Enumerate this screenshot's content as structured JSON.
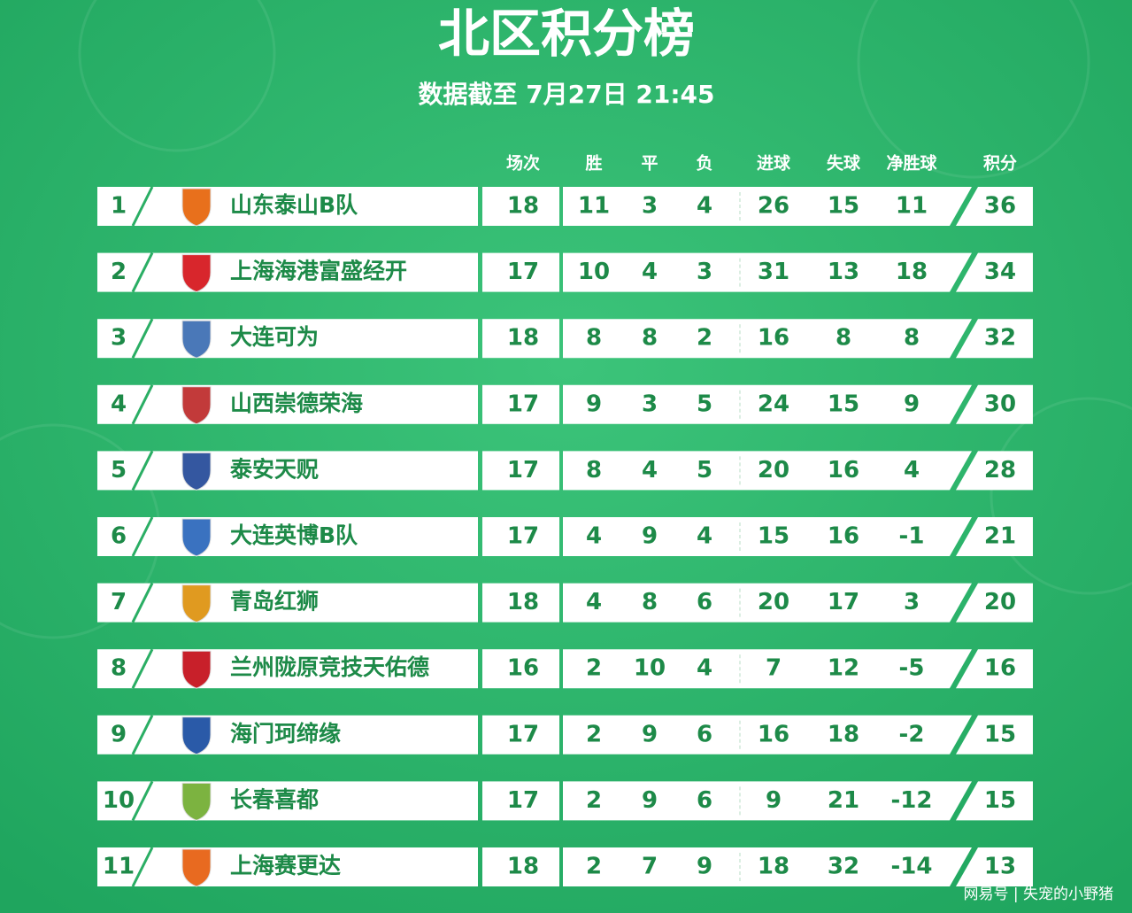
{
  "header": {
    "title": "北区积分榜",
    "subtitle": "数据截至 7月27日 21:45"
  },
  "table": {
    "columns": [
      "场次",
      "胜",
      "平",
      "负",
      "进球",
      "失球",
      "净胜球",
      "积分"
    ],
    "rows": [
      [
        1,
        "山东泰山B队",
        18,
        11,
        3,
        4,
        26,
        15,
        11,
        36
      ],
      [
        2,
        "上海海港富盛经开",
        17,
        10,
        4,
        3,
        31,
        13,
        18,
        34
      ],
      [
        3,
        "大连可为",
        18,
        8,
        8,
        2,
        16,
        8,
        8,
        32
      ],
      [
        4,
        "山西崇德荣海",
        17,
        9,
        3,
        5,
        24,
        15,
        9,
        30
      ],
      [
        5,
        "泰安天贶",
        17,
        8,
        4,
        5,
        20,
        16,
        4,
        28
      ],
      [
        6,
        "大连英博B队",
        17,
        4,
        9,
        4,
        15,
        16,
        -1,
        21
      ],
      [
        7,
        "青岛红狮",
        18,
        4,
        8,
        6,
        20,
        17,
        3,
        20
      ],
      [
        8,
        "兰州陇原竞技天佑德",
        16,
        2,
        10,
        4,
        7,
        12,
        -5,
        16
      ],
      [
        9,
        "海门珂缔缘",
        17,
        2,
        9,
        6,
        16,
        18,
        -2,
        15
      ],
      [
        10,
        "长春喜都",
        17,
        2,
        9,
        6,
        9,
        21,
        -12,
        15
      ],
      [
        11,
        "上海赛更达",
        18,
        2,
        7,
        9,
        18,
        32,
        -14,
        13
      ]
    ]
  },
  "watermark": "网易号 | 失宠的小野猪"
}
